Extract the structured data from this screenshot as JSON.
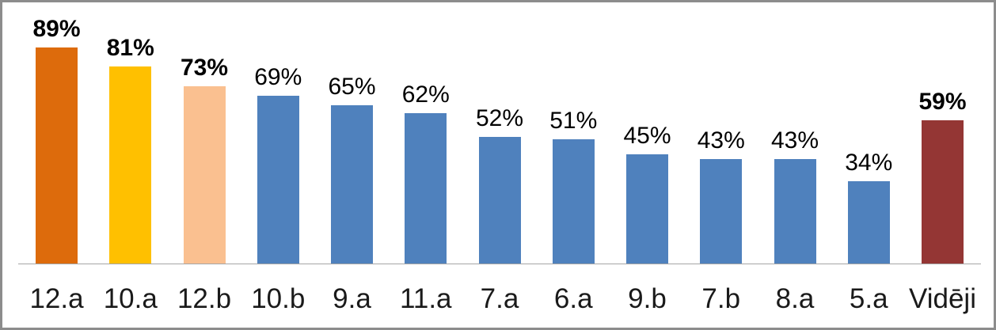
{
  "chart_data": {
    "type": "bar",
    "title": "",
    "xlabel": "",
    "ylabel": "",
    "ylim": [
      0,
      100
    ],
    "grid": false,
    "legend": "none",
    "categories": [
      "12.a",
      "10.a",
      "12.b",
      "10.b",
      "9.a",
      "11.a",
      "7.a",
      "6.a",
      "9.b",
      "7.b",
      "8.a",
      "5.a",
      "Vidēji"
    ],
    "values": [
      89,
      81,
      73,
      69,
      65,
      62,
      52,
      51,
      45,
      43,
      43,
      34,
      59
    ],
    "value_labels": [
      "89%",
      "81%",
      "73%",
      "69%",
      "65%",
      "62%",
      "52%",
      "51%",
      "45%",
      "43%",
      "43%",
      "34%",
      "59%"
    ],
    "bold_value_labels": [
      true,
      true,
      true,
      false,
      false,
      false,
      false,
      false,
      false,
      false,
      false,
      false,
      true
    ],
    "bar_colors": [
      "#dd6b0c",
      "#ffc000",
      "#fac090",
      "#4f81bd",
      "#4f81bd",
      "#4f81bd",
      "#4f81bd",
      "#4f81bd",
      "#4f81bd",
      "#4f81bd",
      "#4f81bd",
      "#4f81bd",
      "#943634"
    ]
  },
  "colors": {
    "highlight_orange": "#dd6b0c",
    "highlight_gold": "#ffc000",
    "highlight_peach": "#fac090",
    "series_blue": "#4f81bd",
    "average_dark_red": "#943634",
    "axis_line": "#a6a6a6",
    "frame_border": "#8c8c8c",
    "label_text": "#000000",
    "background": "#ffffff"
  }
}
